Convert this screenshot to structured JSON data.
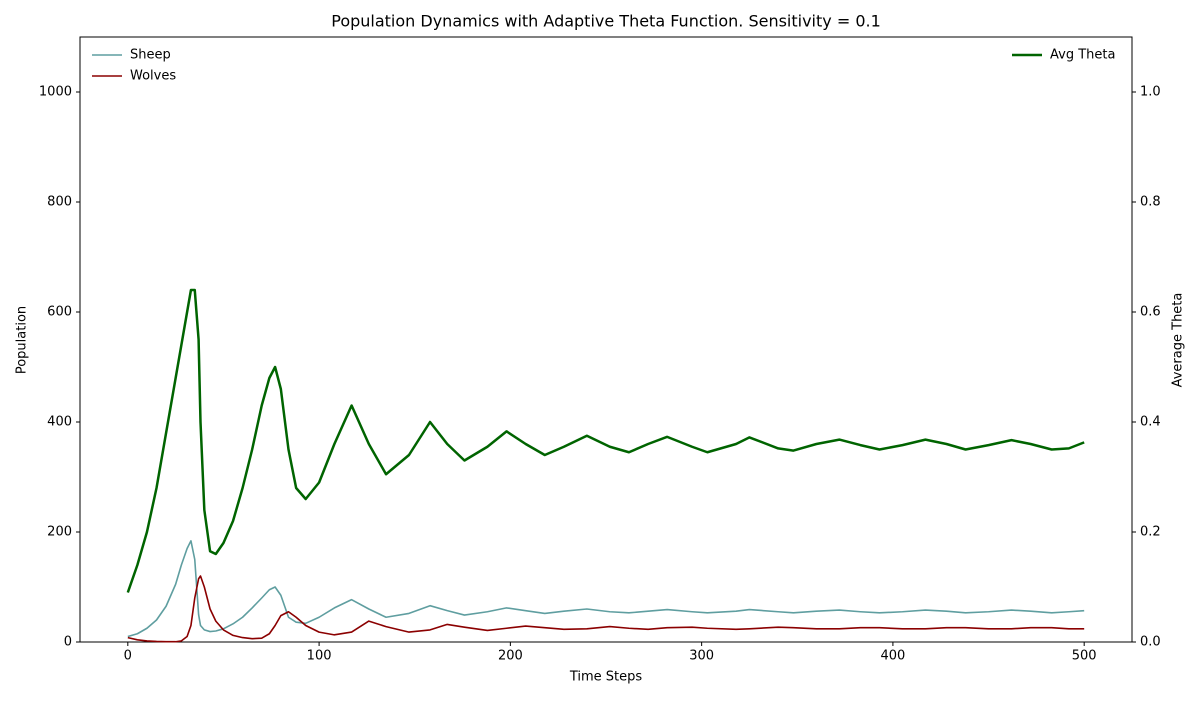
{
  "chart_data": {
    "type": "line",
    "title": "Population Dynamics with Adaptive Theta Function. Sensitivity = 0.1",
    "x_label": "Time Steps",
    "y_label": "Population",
    "y2_label": "Average Theta",
    "x": [
      0,
      5,
      10,
      15,
      20,
      25,
      28,
      31,
      33,
      35,
      37,
      38,
      40,
      43,
      46,
      50,
      55,
      60,
      65,
      70,
      74,
      77,
      80,
      84,
      88,
      93,
      100,
      108,
      117,
      126,
      135,
      147,
      158,
      167,
      176,
      188,
      198,
      208,
      218,
      228,
      240,
      252,
      262,
      272,
      282,
      295,
      303,
      318,
      325,
      340,
      348,
      360,
      372,
      383,
      393,
      405,
      417,
      428,
      438,
      450,
      462,
      472,
      483,
      492,
      500
    ],
    "series": [
      {
        "name": "Sheep",
        "color": "#5f9ea0",
        "axis": "y",
        "values": [
          10,
          15,
          25,
          40,
          65,
          105,
          140,
          170,
          184,
          150,
          50,
          30,
          22,
          19,
          20,
          24,
          33,
          45,
          62,
          80,
          95,
          100,
          85,
          45,
          36,
          34,
          45,
          62,
          77,
          60,
          45,
          52,
          66,
          57,
          49,
          55,
          62,
          57,
          52,
          56,
          60,
          55,
          53,
          56,
          59,
          55,
          53,
          56,
          59,
          55,
          53,
          56,
          58,
          55,
          53,
          55,
          58,
          56,
          53,
          55,
          58,
          56,
          53,
          55,
          57
        ]
      },
      {
        "name": "Wolves",
        "color": "#8b0000",
        "axis": "y",
        "values": [
          8,
          4,
          2,
          1,
          0.5,
          0.5,
          2,
          10,
          30,
          80,
          115,
          120,
          100,
          60,
          38,
          22,
          12,
          8,
          6,
          7,
          15,
          30,
          48,
          55,
          45,
          30,
          18,
          13,
          18,
          38,
          28,
          18,
          22,
          32,
          27,
          21,
          25,
          29,
          26,
          23,
          24,
          28,
          25,
          23,
          26,
          27,
          25,
          23,
          24,
          27,
          26,
          24,
          24,
          26,
          26,
          24,
          24,
          26,
          26,
          24,
          24,
          26,
          26,
          24,
          24
        ]
      },
      {
        "name": "Avg Theta",
        "color": "#006400",
        "axis": "y2",
        "values": [
          0.09,
          0.14,
          0.2,
          0.28,
          0.38,
          0.48,
          0.54,
          0.6,
          0.64,
          0.64,
          0.55,
          0.4,
          0.24,
          0.165,
          0.16,
          0.18,
          0.22,
          0.28,
          0.35,
          0.43,
          0.48,
          0.5,
          0.46,
          0.35,
          0.28,
          0.26,
          0.29,
          0.36,
          0.43,
          0.36,
          0.305,
          0.34,
          0.4,
          0.36,
          0.33,
          0.355,
          0.383,
          0.36,
          0.34,
          0.355,
          0.375,
          0.355,
          0.345,
          0.36,
          0.373,
          0.355,
          0.345,
          0.36,
          0.372,
          0.352,
          0.348,
          0.36,
          0.368,
          0.358,
          0.35,
          0.358,
          0.368,
          0.36,
          0.35,
          0.358,
          0.367,
          0.36,
          0.35,
          0.352,
          0.363
        ]
      }
    ],
    "xlim": [
      -25,
      525
    ],
    "xticks": [
      0,
      100,
      200,
      300,
      400,
      500
    ],
    "ylim": [
      0,
      1100
    ],
    "yticks": [
      0,
      200,
      400,
      600,
      800,
      1000
    ],
    "y2lim": [
      0,
      1.1
    ],
    "y2ticks": [
      {
        "value": 0,
        "label": "0.0"
      },
      0.2,
      0.4,
      0.6,
      0.8,
      {
        "value": 1,
        "label": "1.0"
      }
    ],
    "legend": "upper left",
    "legend2": "upper right",
    "grid": false
  }
}
